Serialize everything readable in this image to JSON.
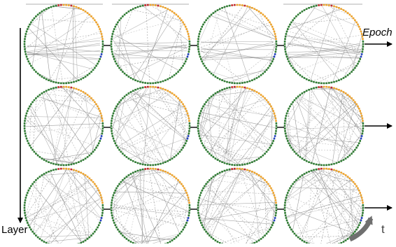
{
  "labels": {
    "epoch": "Epoch",
    "layer": "Layer",
    "time": "t"
  },
  "grid": {
    "rows": 3,
    "cols": 4
  },
  "colors": {
    "ring_green": "#2e7d32",
    "ring_orange": "#f2a427",
    "ring_red": "#c62828",
    "ring_blue": "#1f3fbf",
    "edge": "#8a8a8a",
    "arrow": "#000000",
    "time_arrow": "#6f6f6f"
  },
  "density": [
    [
      1,
      1,
      1,
      1
    ],
    [
      2,
      3,
      3,
      3
    ],
    [
      2,
      3,
      3,
      3
    ]
  ]
}
